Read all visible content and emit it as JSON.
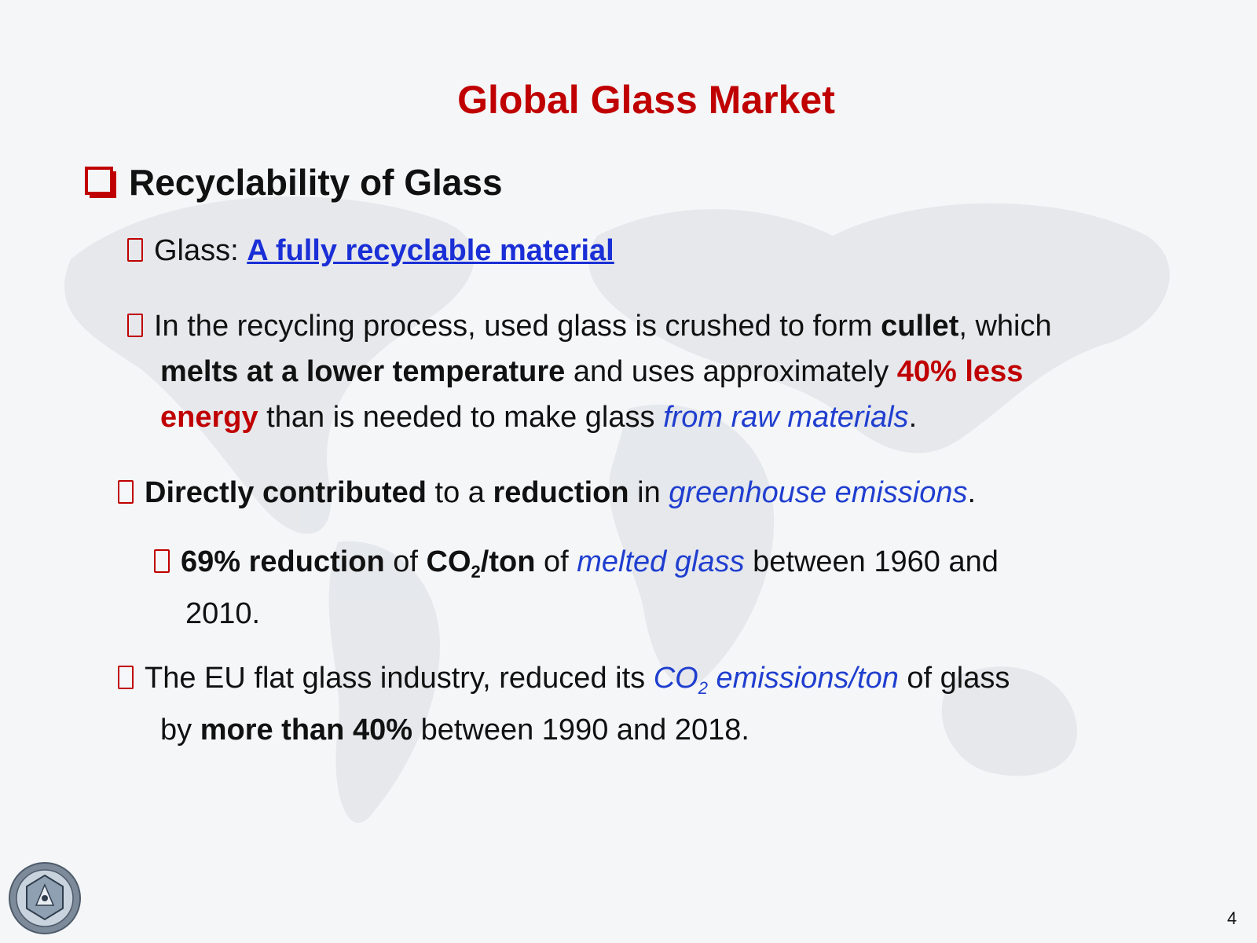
{
  "slide": {
    "title": "Global Glass Market",
    "heading": "Recyclability of Glass",
    "page_number": "4"
  },
  "bullets": {
    "b1": {
      "prefix": "Glass: ",
      "link": "A fully recyclable material"
    },
    "b2": {
      "t1": "In the recycling process, used glass is crushed to form ",
      "cullet": "cullet",
      "t2": ", which",
      "melts": "melts at a lower temperature",
      "t3": " and uses approximately ",
      "less_a": "40% less",
      "less_b": "energy",
      "t4": " than is needed to make glass ",
      "raw": "from raw materials",
      "t5": "."
    },
    "b3": {
      "direct": "Directly contributed",
      "t1": " to a ",
      "reduction": "reduction",
      "t2": " in ",
      "ghg": "greenhouse emissions",
      "t3": "."
    },
    "b4": {
      "pct": "69% reduction",
      "t1": " of ",
      "co": "CO",
      "sub": "2",
      "ton": "/ton",
      "t2": " of ",
      "melted": "melted glass",
      "t3": " between 1960 and",
      "t4": "2010."
    },
    "b5": {
      "t1": "The EU flat glass industry, reduced its ",
      "co": "CO",
      "sub": "2",
      "em": " emissions/ton",
      "t2": " of glass",
      "t3": "by ",
      "more": "more than 40%",
      "t4": " between 1990 and 2018."
    }
  },
  "colors": {
    "accent_red": "#c00000",
    "accent_blue": "#1f3ecf",
    "link_blue": "#1a2fd6"
  }
}
